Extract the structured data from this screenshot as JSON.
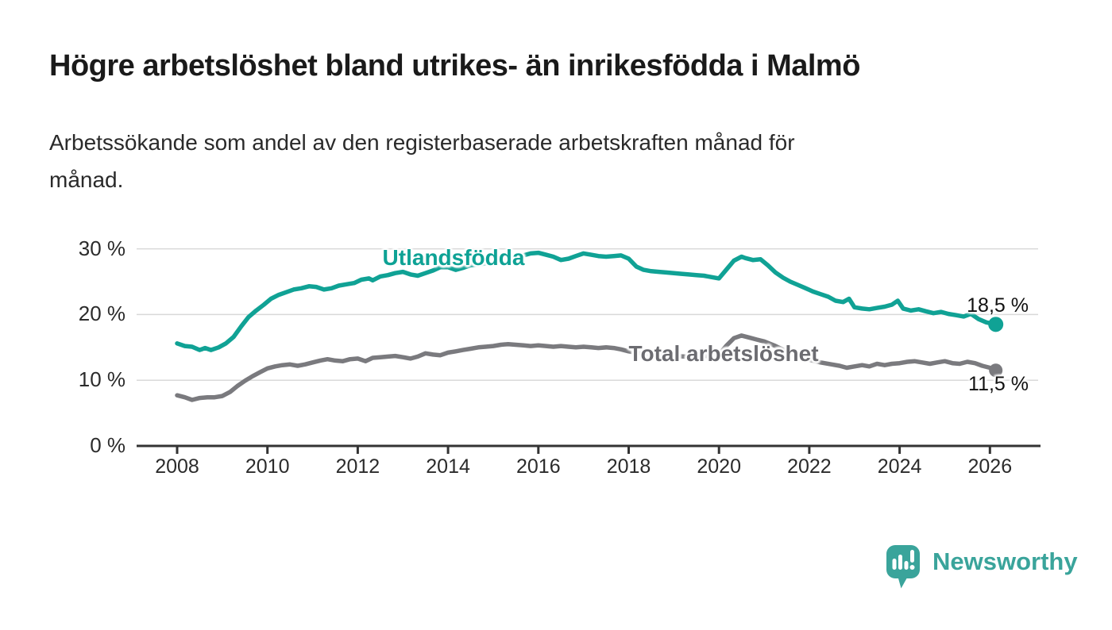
{
  "title": "Högre arbetslöshet bland utrikes- än inrikesfödda i Malmö",
  "subtitle_lines": [
    "Arbetssökande som andel av den registerbaserade arbetskraften månad för",
    "månad."
  ],
  "colors": {
    "foreign_line": "#10a295",
    "foreign_label": "#0ea295",
    "total_line": "#7a7a7e",
    "total_label": "#6c6c71",
    "grid": "#d9d9d9",
    "axis": "#333333",
    "axis_text": "#2b2b2b",
    "end_label_text": "#111111",
    "logo_teal": "#3aa49b"
  },
  "chart_data": {
    "type": "line",
    "title": "",
    "xlabel": "",
    "ylabel": "",
    "unit": "%",
    "grid": "horizontal",
    "legend_position": "inline-labels",
    "x_axis": {
      "ticks": [
        2008,
        2010,
        2012,
        2014,
        2016,
        2018,
        2020,
        2022,
        2024,
        2026
      ],
      "tick_labels": [
        "2008",
        "2010",
        "2012",
        "2014",
        "2016",
        "2018",
        "2020",
        "2022",
        "2024",
        "2026"
      ],
      "range": [
        2007.1,
        2027.1
      ]
    },
    "y_axis": {
      "ticks": [
        0,
        10,
        20,
        30
      ],
      "tick_labels": [
        "0 %",
        "10 %",
        "20 %",
        "30 %"
      ],
      "range": [
        0,
        33.5
      ]
    },
    "series": [
      {
        "name": "Utlandsfödda",
        "end_label": "18,5 %",
        "end_value": 18.5,
        "points": [
          [
            2008.0,
            15.6
          ],
          [
            2008.17,
            15.2
          ],
          [
            2008.33,
            15.1
          ],
          [
            2008.5,
            14.6
          ],
          [
            2008.62,
            14.9
          ],
          [
            2008.75,
            14.6
          ],
          [
            2008.92,
            15.0
          ],
          [
            2009.08,
            15.6
          ],
          [
            2009.25,
            16.6
          ],
          [
            2009.42,
            18.2
          ],
          [
            2009.58,
            19.6
          ],
          [
            2009.75,
            20.6
          ],
          [
            2009.92,
            21.5
          ],
          [
            2010.08,
            22.4
          ],
          [
            2010.25,
            23.0
          ],
          [
            2010.42,
            23.4
          ],
          [
            2010.58,
            23.8
          ],
          [
            2010.75,
            24.0
          ],
          [
            2010.92,
            24.3
          ],
          [
            2011.08,
            24.2
          ],
          [
            2011.25,
            23.8
          ],
          [
            2011.42,
            24.0
          ],
          [
            2011.58,
            24.4
          ],
          [
            2011.75,
            24.6
          ],
          [
            2011.92,
            24.8
          ],
          [
            2012.08,
            25.3
          ],
          [
            2012.25,
            25.5
          ],
          [
            2012.33,
            25.2
          ],
          [
            2012.5,
            25.8
          ],
          [
            2012.67,
            26.0
          ],
          [
            2012.83,
            26.3
          ],
          [
            2013.0,
            26.5
          ],
          [
            2013.17,
            26.1
          ],
          [
            2013.33,
            25.9
          ],
          [
            2013.5,
            26.3
          ],
          [
            2013.67,
            26.7
          ],
          [
            2013.83,
            27.2
          ],
          [
            2014.0,
            27.2
          ],
          [
            2014.17,
            26.8
          ],
          [
            2014.33,
            27.1
          ],
          [
            2014.5,
            27.5
          ],
          [
            2014.67,
            27.6
          ],
          [
            2014.83,
            27.8
          ],
          [
            2015.0,
            27.9
          ],
          [
            2015.17,
            28.2
          ],
          [
            2015.33,
            28.5
          ],
          [
            2015.5,
            28.8
          ],
          [
            2015.67,
            29.0
          ],
          [
            2015.83,
            29.3
          ],
          [
            2016.0,
            29.4
          ],
          [
            2016.17,
            29.1
          ],
          [
            2016.33,
            28.8
          ],
          [
            2016.5,
            28.3
          ],
          [
            2016.67,
            28.5
          ],
          [
            2016.83,
            28.9
          ],
          [
            2017.0,
            29.3
          ],
          [
            2017.17,
            29.1
          ],
          [
            2017.33,
            28.9
          ],
          [
            2017.5,
            28.8
          ],
          [
            2017.67,
            28.9
          ],
          [
            2017.83,
            29.0
          ],
          [
            2018.0,
            28.5
          ],
          [
            2018.17,
            27.3
          ],
          [
            2018.33,
            26.8
          ],
          [
            2018.5,
            26.6
          ],
          [
            2018.67,
            26.5
          ],
          [
            2018.83,
            26.4
          ],
          [
            2019.0,
            26.3
          ],
          [
            2019.17,
            26.2
          ],
          [
            2019.33,
            26.1
          ],
          [
            2019.5,
            26.0
          ],
          [
            2019.67,
            25.9
          ],
          [
            2019.83,
            25.7
          ],
          [
            2020.0,
            25.5
          ],
          [
            2020.17,
            26.9
          ],
          [
            2020.33,
            28.2
          ],
          [
            2020.5,
            28.8
          ],
          [
            2020.58,
            28.6
          ],
          [
            2020.75,
            28.3
          ],
          [
            2020.92,
            28.4
          ],
          [
            2021.08,
            27.5
          ],
          [
            2021.25,
            26.4
          ],
          [
            2021.42,
            25.6
          ],
          [
            2021.58,
            25.0
          ],
          [
            2021.75,
            24.5
          ],
          [
            2021.92,
            24.0
          ],
          [
            2022.08,
            23.5
          ],
          [
            2022.25,
            23.1
          ],
          [
            2022.42,
            22.7
          ],
          [
            2022.58,
            22.1
          ],
          [
            2022.75,
            21.9
          ],
          [
            2022.88,
            22.4
          ],
          [
            2023.0,
            21.1
          ],
          [
            2023.17,
            20.9
          ],
          [
            2023.33,
            20.8
          ],
          [
            2023.5,
            21.0
          ],
          [
            2023.67,
            21.2
          ],
          [
            2023.83,
            21.5
          ],
          [
            2023.96,
            22.1
          ],
          [
            2024.08,
            20.9
          ],
          [
            2024.25,
            20.6
          ],
          [
            2024.42,
            20.8
          ],
          [
            2024.58,
            20.5
          ],
          [
            2024.75,
            20.2
          ],
          [
            2024.92,
            20.4
          ],
          [
            2025.08,
            20.1
          ],
          [
            2025.25,
            19.9
          ],
          [
            2025.42,
            19.7
          ],
          [
            2025.58,
            20.1
          ],
          [
            2025.75,
            19.3
          ],
          [
            2025.92,
            18.8
          ],
          [
            2026.13,
            18.5
          ]
        ]
      },
      {
        "name": "Total arbetslöshet",
        "end_label": "11,5 %",
        "end_value": 11.5,
        "points": [
          [
            2008.0,
            7.7
          ],
          [
            2008.17,
            7.4
          ],
          [
            2008.33,
            7.0
          ],
          [
            2008.5,
            7.3
          ],
          [
            2008.67,
            7.4
          ],
          [
            2008.83,
            7.4
          ],
          [
            2009.0,
            7.6
          ],
          [
            2009.17,
            8.2
          ],
          [
            2009.33,
            9.1
          ],
          [
            2009.5,
            9.9
          ],
          [
            2009.67,
            10.6
          ],
          [
            2009.83,
            11.2
          ],
          [
            2010.0,
            11.8
          ],
          [
            2010.17,
            12.1
          ],
          [
            2010.33,
            12.3
          ],
          [
            2010.5,
            12.4
          ],
          [
            2010.67,
            12.2
          ],
          [
            2010.83,
            12.4
          ],
          [
            2011.0,
            12.7
          ],
          [
            2011.17,
            13.0
          ],
          [
            2011.33,
            13.2
          ],
          [
            2011.5,
            13.0
          ],
          [
            2011.67,
            12.9
          ],
          [
            2011.83,
            13.2
          ],
          [
            2012.0,
            13.3
          ],
          [
            2012.17,
            12.9
          ],
          [
            2012.33,
            13.4
          ],
          [
            2012.5,
            13.5
          ],
          [
            2012.67,
            13.6
          ],
          [
            2012.83,
            13.7
          ],
          [
            2013.0,
            13.5
          ],
          [
            2013.17,
            13.3
          ],
          [
            2013.33,
            13.6
          ],
          [
            2013.5,
            14.1
          ],
          [
            2013.67,
            13.9
          ],
          [
            2013.83,
            13.8
          ],
          [
            2014.0,
            14.2
          ],
          [
            2014.17,
            14.4
          ],
          [
            2014.33,
            14.6
          ],
          [
            2014.5,
            14.8
          ],
          [
            2014.67,
            15.0
          ],
          [
            2014.83,
            15.1
          ],
          [
            2015.0,
            15.2
          ],
          [
            2015.17,
            15.4
          ],
          [
            2015.33,
            15.5
          ],
          [
            2015.5,
            15.4
          ],
          [
            2015.67,
            15.3
          ],
          [
            2015.83,
            15.2
          ],
          [
            2016.0,
            15.3
          ],
          [
            2016.17,
            15.2
          ],
          [
            2016.33,
            15.1
          ],
          [
            2016.5,
            15.2
          ],
          [
            2016.67,
            15.1
          ],
          [
            2016.83,
            15.0
          ],
          [
            2017.0,
            15.1
          ],
          [
            2017.17,
            15.0
          ],
          [
            2017.33,
            14.9
          ],
          [
            2017.5,
            15.0
          ],
          [
            2017.67,
            14.9
          ],
          [
            2017.83,
            14.7
          ],
          [
            2018.0,
            14.4
          ],
          [
            2018.25,
            14.1
          ],
          [
            2018.5,
            13.9
          ],
          [
            2018.75,
            13.8
          ],
          [
            2019.0,
            13.7
          ],
          [
            2019.25,
            13.6
          ],
          [
            2019.5,
            13.6
          ],
          [
            2019.75,
            13.7
          ],
          [
            2020.0,
            13.9
          ],
          [
            2020.17,
            15.3
          ],
          [
            2020.33,
            16.4
          ],
          [
            2020.5,
            16.8
          ],
          [
            2020.67,
            16.5
          ],
          [
            2020.83,
            16.2
          ],
          [
            2021.0,
            15.9
          ],
          [
            2021.25,
            15.2
          ],
          [
            2021.5,
            14.4
          ],
          [
            2021.75,
            13.7
          ],
          [
            2022.0,
            13.1
          ],
          [
            2022.25,
            12.7
          ],
          [
            2022.5,
            12.4
          ],
          [
            2022.67,
            12.2
          ],
          [
            2022.83,
            11.9
          ],
          [
            2023.0,
            12.1
          ],
          [
            2023.17,
            12.3
          ],
          [
            2023.33,
            12.1
          ],
          [
            2023.5,
            12.5
          ],
          [
            2023.67,
            12.3
          ],
          [
            2023.83,
            12.5
          ],
          [
            2024.0,
            12.6
          ],
          [
            2024.17,
            12.8
          ],
          [
            2024.33,
            12.9
          ],
          [
            2024.5,
            12.7
          ],
          [
            2024.67,
            12.5
          ],
          [
            2024.83,
            12.7
          ],
          [
            2025.0,
            12.9
          ],
          [
            2025.17,
            12.6
          ],
          [
            2025.33,
            12.5
          ],
          [
            2025.5,
            12.8
          ],
          [
            2025.67,
            12.6
          ],
          [
            2025.83,
            12.2
          ],
          [
            2026.0,
            11.9
          ],
          [
            2026.13,
            11.5
          ]
        ]
      }
    ]
  },
  "logo": {
    "text": "Newsworthy"
  }
}
